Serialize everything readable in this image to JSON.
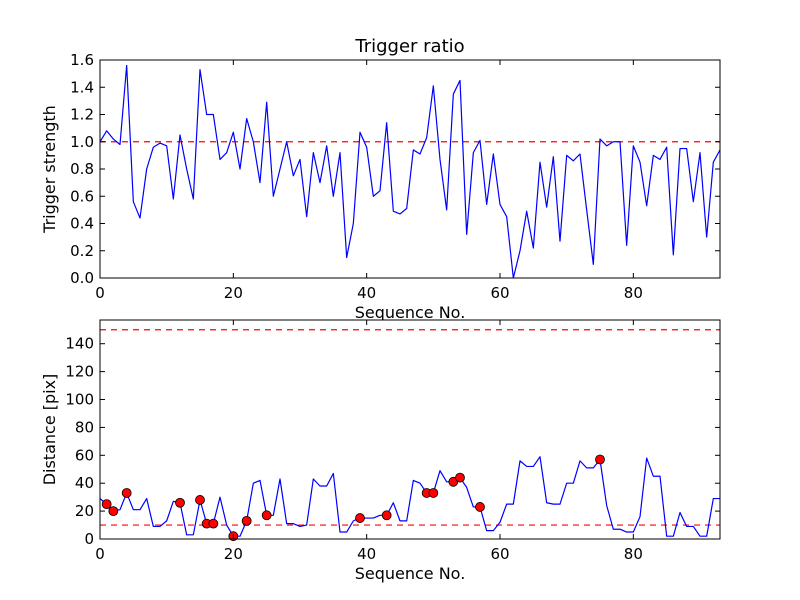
{
  "chart_data": [
    {
      "type": "line",
      "title": "Trigger ratio",
      "xlabel": "Sequence No.",
      "ylabel": "Trigger strength",
      "xlim": [
        0,
        93
      ],
      "ylim": [
        0,
        1.6
      ],
      "xticks": [
        0,
        20,
        40,
        60,
        80
      ],
      "yticks": [
        0.0,
        0.2,
        0.4,
        0.6,
        0.8,
        1.0,
        1.2,
        1.4,
        1.6
      ],
      "ytick_labels": [
        "0.0",
        "0.2",
        "0.4",
        "0.6",
        "0.8",
        "1.0",
        "1.2",
        "1.4",
        "1.6"
      ],
      "grid": false,
      "series": [
        {
          "color": "#0000ff",
          "x": [
            0,
            1,
            2,
            3,
            4,
            5,
            6,
            7,
            8,
            9,
            10,
            11,
            12,
            13,
            14,
            15,
            16,
            17,
            18,
            19,
            20,
            21,
            22,
            23,
            24,
            25,
            26,
            27,
            28,
            29,
            30,
            31,
            32,
            33,
            34,
            35,
            36,
            37,
            38,
            39,
            40,
            41,
            42,
            43,
            44,
            45,
            46,
            47,
            48,
            49,
            50,
            51,
            52,
            53,
            54,
            55,
            56,
            57,
            58,
            59,
            60,
            61,
            62,
            63,
            64,
            65,
            66,
            67,
            68,
            69,
            70,
            71,
            72,
            73,
            74,
            75,
            76,
            77,
            78,
            79,
            80,
            81,
            82,
            83,
            84,
            85,
            86,
            87,
            88,
            89,
            90,
            91,
            92,
            93
          ],
          "y": [
            1.0,
            1.08,
            1.02,
            0.98,
            1.56,
            0.56,
            0.44,
            0.8,
            0.96,
            0.99,
            0.97,
            0.58,
            1.05,
            0.8,
            0.58,
            1.53,
            1.2,
            1.2,
            0.87,
            0.92,
            1.07,
            0.8,
            1.17,
            1.0,
            0.7,
            1.29,
            0.6,
            0.8,
            1.0,
            0.75,
            0.87,
            0.45,
            0.92,
            0.7,
            0.97,
            0.6,
            0.92,
            0.15,
            0.4,
            1.07,
            0.96,
            0.6,
            0.64,
            1.14,
            0.49,
            0.47,
            0.51,
            0.94,
            0.91,
            1.03,
            1.41,
            0.87,
            0.5,
            1.35,
            1.45,
            0.32,
            0.92,
            1.01,
            0.54,
            0.91,
            0.54,
            0.45,
            0.0,
            0.2,
            0.49,
            0.22,
            0.85,
            0.52,
            0.89,
            0.27,
            0.9,
            0.86,
            0.91,
            0.5,
            0.1,
            1.02,
            0.97,
            1.0,
            1.0,
            0.24,
            0.97,
            0.85,
            0.53,
            0.9,
            0.87,
            0.96,
            0.17,
            0.95,
            0.95,
            0.56,
            0.92,
            0.3,
            0.85,
            0.94
          ]
        }
      ],
      "reference_lines": [
        {
          "y": 1.0,
          "color": "#ff0000",
          "style": "dashed"
        }
      ]
    },
    {
      "type": "line",
      "title": "",
      "xlabel": "Sequence No.",
      "ylabel": "Distance [pix]",
      "xlim": [
        0,
        93
      ],
      "ylim": [
        0,
        157
      ],
      "xticks": [
        0,
        20,
        40,
        60,
        80
      ],
      "yticks": [
        0,
        20,
        40,
        60,
        80,
        100,
        120,
        140
      ],
      "ytick_labels": [
        "0",
        "20",
        "40",
        "60",
        "80",
        "100",
        "120",
        "140"
      ],
      "grid": false,
      "series": [
        {
          "color": "#0000ff",
          "x": [
            0,
            1,
            2,
            3,
            4,
            5,
            6,
            7,
            8,
            9,
            10,
            11,
            12,
            13,
            14,
            15,
            16,
            17,
            18,
            19,
            20,
            21,
            22,
            23,
            24,
            25,
            26,
            27,
            28,
            29,
            30,
            31,
            32,
            33,
            34,
            35,
            36,
            37,
            38,
            39,
            40,
            41,
            42,
            43,
            44,
            45,
            46,
            47,
            48,
            49,
            50,
            51,
            52,
            53,
            54,
            55,
            56,
            57,
            58,
            59,
            60,
            61,
            62,
            63,
            64,
            65,
            66,
            67,
            68,
            69,
            70,
            71,
            72,
            73,
            74,
            75,
            76,
            77,
            78,
            79,
            80,
            81,
            82,
            83,
            84,
            85,
            86,
            87,
            88,
            89,
            90,
            91,
            92,
            93
          ],
          "y": [
            29,
            25,
            20,
            21,
            33,
            21,
            21,
            29,
            9,
            9,
            13,
            27,
            26,
            3,
            3,
            28,
            11,
            11,
            30,
            10,
            2,
            2,
            13,
            40,
            42,
            17,
            17,
            43,
            11,
            11,
            9,
            10,
            43,
            38,
            38,
            47,
            5,
            5,
            13,
            15,
            15,
            15,
            17,
            17,
            26,
            13,
            13,
            42,
            40,
            33,
            33,
            49,
            41,
            41,
            44,
            37,
            23,
            23,
            6,
            6,
            12,
            25,
            25,
            56,
            52,
            52,
            59,
            26,
            25,
            25,
            40,
            40,
            56,
            51,
            51,
            57,
            24,
            7,
            7,
            5,
            5,
            16,
            58,
            45,
            45,
            2,
            2,
            19,
            9,
            9,
            2,
            2,
            29,
            29
          ]
        }
      ],
      "markers": {
        "color": "#ff0000",
        "x": [
          1,
          2,
          4,
          12,
          15,
          16,
          17,
          22,
          25,
          20,
          39,
          43,
          49,
          50,
          53,
          54,
          57,
          75
        ],
        "y": [
          25,
          20,
          33,
          26,
          28,
          11,
          11,
          13,
          17,
          2,
          15,
          17,
          33,
          33,
          41,
          44,
          23,
          57
        ]
      },
      "reference_lines": [
        {
          "y": 10,
          "color": "#ff0000",
          "style": "dashed"
        },
        {
          "y": 150,
          "color": "#ff0000",
          "style": "dashed"
        }
      ]
    }
  ]
}
